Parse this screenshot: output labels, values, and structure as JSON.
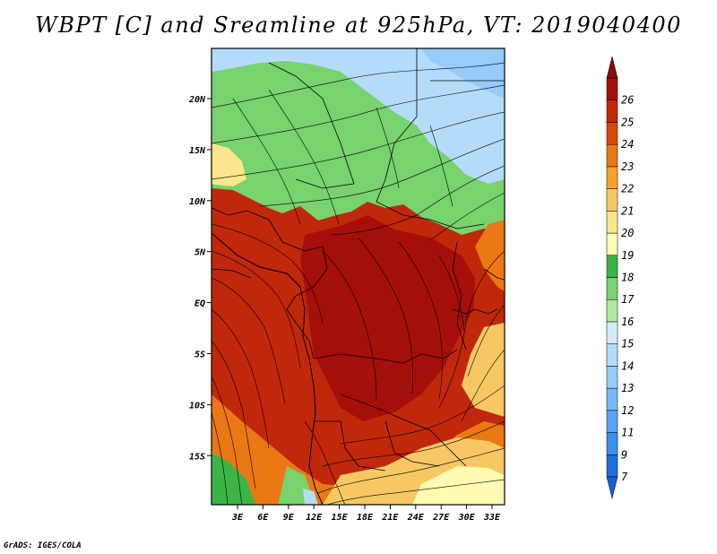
{
  "title": "WBPT [C] and Sreamline at 925hPa, VT: 2019040400",
  "credit": "GrADS: IGES/COLA",
  "axes": {
    "lon_ticks": [
      "3E",
      "6E",
      "9E",
      "12E",
      "15E",
      "18E",
      "21E",
      "24E",
      "27E",
      "30E",
      "33E"
    ],
    "lat_ticks": [
      "20N",
      "15N",
      "10N",
      "5N",
      "EQ",
      "5S",
      "10S",
      "15S"
    ]
  },
  "colorbar": {
    "levels": [
      "7",
      "9",
      "11",
      "12",
      "13",
      "14",
      "15",
      "16",
      "17",
      "18",
      "19",
      "20",
      "21",
      "22",
      "23",
      "24",
      "25",
      "26"
    ],
    "colors": [
      "#1e6edc",
      "#3c8ef0",
      "#5aa3f5",
      "#78b8fa",
      "#96cbfa",
      "#b4dcfa",
      "#d2ecfa",
      "#b4e6a0",
      "#78d26e",
      "#3cb446",
      "#fffab4",
      "#fae68c",
      "#f5c864",
      "#f5a032",
      "#eb7814",
      "#d74b0a",
      "#c3280a",
      "#a50f0a"
    ],
    "extend_top_color": "#8b0a0a",
    "extend_bottom_color": "#1a5fd0"
  },
  "map": {
    "background_color": "#c0280c",
    "regions": [
      {
        "name": "north-band-green",
        "color": "#78d26e"
      },
      {
        "name": "northeast-blue",
        "color": "#b4dcfa"
      },
      {
        "name": "sahel-yellow",
        "color": "#fae68c"
      },
      {
        "name": "congo-core",
        "color": "#a50f0a"
      },
      {
        "name": "southern-orange",
        "color": "#eb7814"
      },
      {
        "name": "southeast-yellow",
        "color": "#f5c864"
      },
      {
        "name": "southwest-green",
        "color": "#3cb446"
      }
    ]
  }
}
